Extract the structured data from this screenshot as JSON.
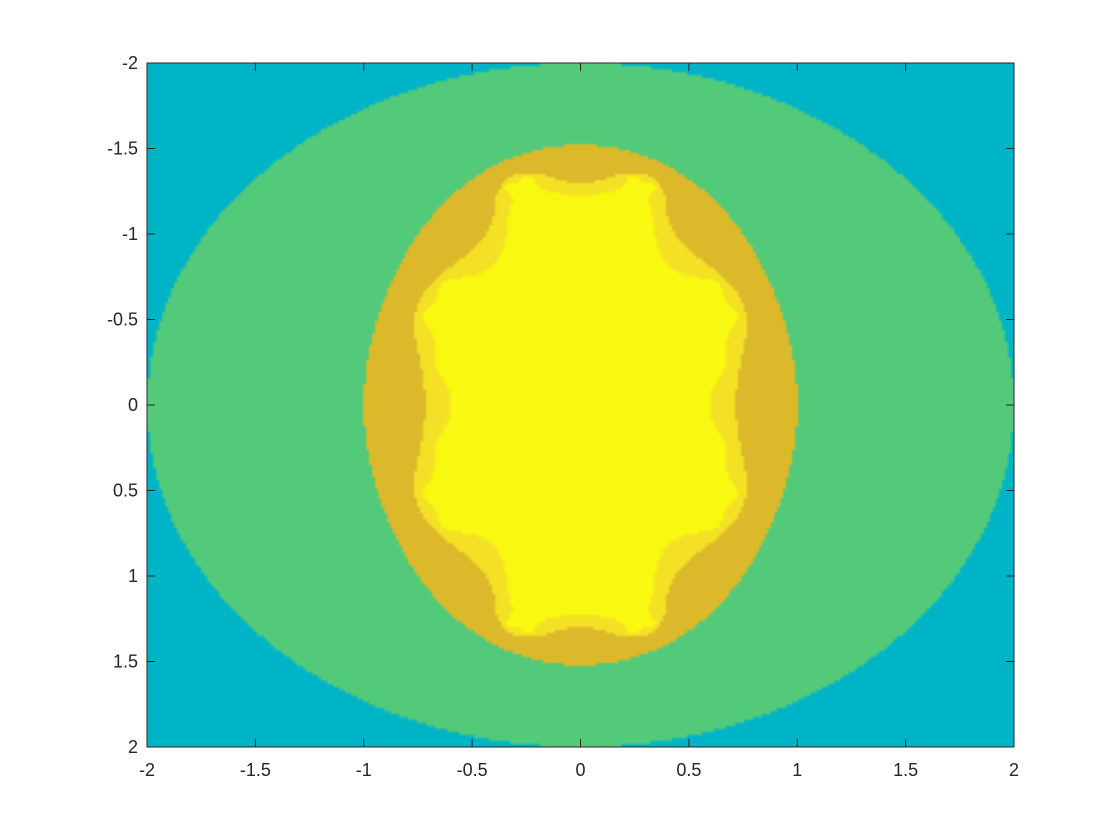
{
  "chart_data": {
    "type": "heatmap",
    "title": "",
    "xlabel": "",
    "ylabel": "",
    "xlim": [
      -2,
      2
    ],
    "ylim": [
      -2,
      2
    ],
    "y_direction": "reversed",
    "x_ticks": [
      "-2",
      "-1.5",
      "-1",
      "-0.5",
      "0",
      "0.5",
      "1",
      "1.5",
      "2"
    ],
    "y_ticks": [
      "-2",
      "-1.5",
      "-1",
      "-0.5",
      "0",
      "0.5",
      "1",
      "1.5",
      "2"
    ],
    "grid": false,
    "colormap": "parula",
    "levels": [
      {
        "level": 1,
        "color": "#00B4C8"
      },
      {
        "level": 2,
        "color": "#52CA7A"
      },
      {
        "level": 3,
        "color": "#DBB92A"
      },
      {
        "level": 4,
        "color": "#F4E025"
      },
      {
        "level": 5,
        "color": "#F8F810"
      }
    ],
    "function": "multibrot escape iterations, z -> z^3 + c, max 5 iterations, level = iterations until |z| > 2"
  }
}
